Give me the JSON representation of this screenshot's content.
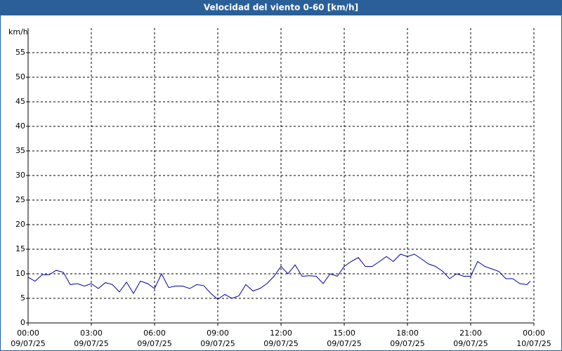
{
  "chart_data": {
    "type": "line",
    "title": "Velocidad del viento 0-60 [km/h]",
    "y_label": "km/h",
    "x": [
      0,
      0.33,
      0.67,
      1,
      1.33,
      1.67,
      2,
      2.33,
      2.67,
      3,
      3.33,
      3.67,
      4,
      4.33,
      4.67,
      5,
      5.33,
      5.67,
      6,
      6.33,
      6.67,
      7,
      7.33,
      7.67,
      8,
      8.33,
      8.67,
      9,
      9.33,
      9.67,
      10,
      10.33,
      10.67,
      11,
      11.33,
      11.67,
      12,
      12.33,
      12.67,
      13,
      13.33,
      13.67,
      14,
      14.33,
      14.67,
      15,
      15.33,
      15.67,
      16,
      16.33,
      16.67,
      17,
      17.33,
      17.67,
      18,
      18.33,
      18.67,
      19,
      19.33,
      19.67,
      20,
      20.33,
      20.67,
      21,
      21.33,
      21.67,
      22,
      22.33,
      22.67,
      23,
      23.33,
      23.67,
      23.83
    ],
    "series": [
      {
        "name": "Velocidad del viento",
        "color": "#0000a0",
        "values": [
          9.3,
          8.5,
          9.8,
          9.8,
          10.7,
          10.3,
          7.8,
          8.0,
          7.5,
          8.0,
          7.0,
          8.2,
          7.8,
          6.3,
          8.3,
          6.0,
          8.5,
          8.0,
          7.0,
          10,
          7.2,
          7.5,
          7.5,
          7.0,
          7.8,
          7.6,
          6.0,
          4.8,
          5.8,
          5.0,
          5.5,
          7.8,
          6.5,
          7.0,
          8.0,
          9.5,
          11.5,
          10.0,
          11.8,
          9.5,
          9.6,
          9.5,
          8.0,
          10.0,
          9.5,
          11.5,
          12.5,
          13.3,
          11.5,
          11.5,
          12.5,
          13.5,
          12.5,
          14.0,
          13.5,
          14.0,
          13.0,
          12.0,
          11.5,
          10.5,
          9.0,
          10.0,
          9.5,
          9.5,
          12.5,
          11.5,
          11.0,
          10.5,
          9.0,
          9.0,
          8.0,
          7.8,
          8.5
        ]
      }
    ],
    "xlim": [
      0,
      24
    ],
    "xticks": [
      {
        "value": 0,
        "label": "00:00"
      },
      {
        "value": 3,
        "label": "03:00"
      },
      {
        "value": 6,
        "label": "06:00"
      },
      {
        "value": 9,
        "label": "09:00"
      },
      {
        "value": 12,
        "label": "12:00"
      },
      {
        "value": 15,
        "label": "15:00"
      },
      {
        "value": 18,
        "label": "18:00"
      },
      {
        "value": 21,
        "label": "21:00"
      },
      {
        "value": 24,
        "label": "00:00"
      }
    ],
    "xtick_dates": [
      "09/07/25",
      "09/07/25",
      "09/07/25",
      "09/07/25",
      "09/07/25",
      "09/07/25",
      "09/07/25",
      "09/07/25",
      "10/07/25"
    ],
    "ylim": [
      0,
      60
    ],
    "yticks": [
      0,
      5,
      10,
      15,
      20,
      25,
      30,
      35,
      40,
      45,
      50,
      55
    ],
    "grid": true
  }
}
